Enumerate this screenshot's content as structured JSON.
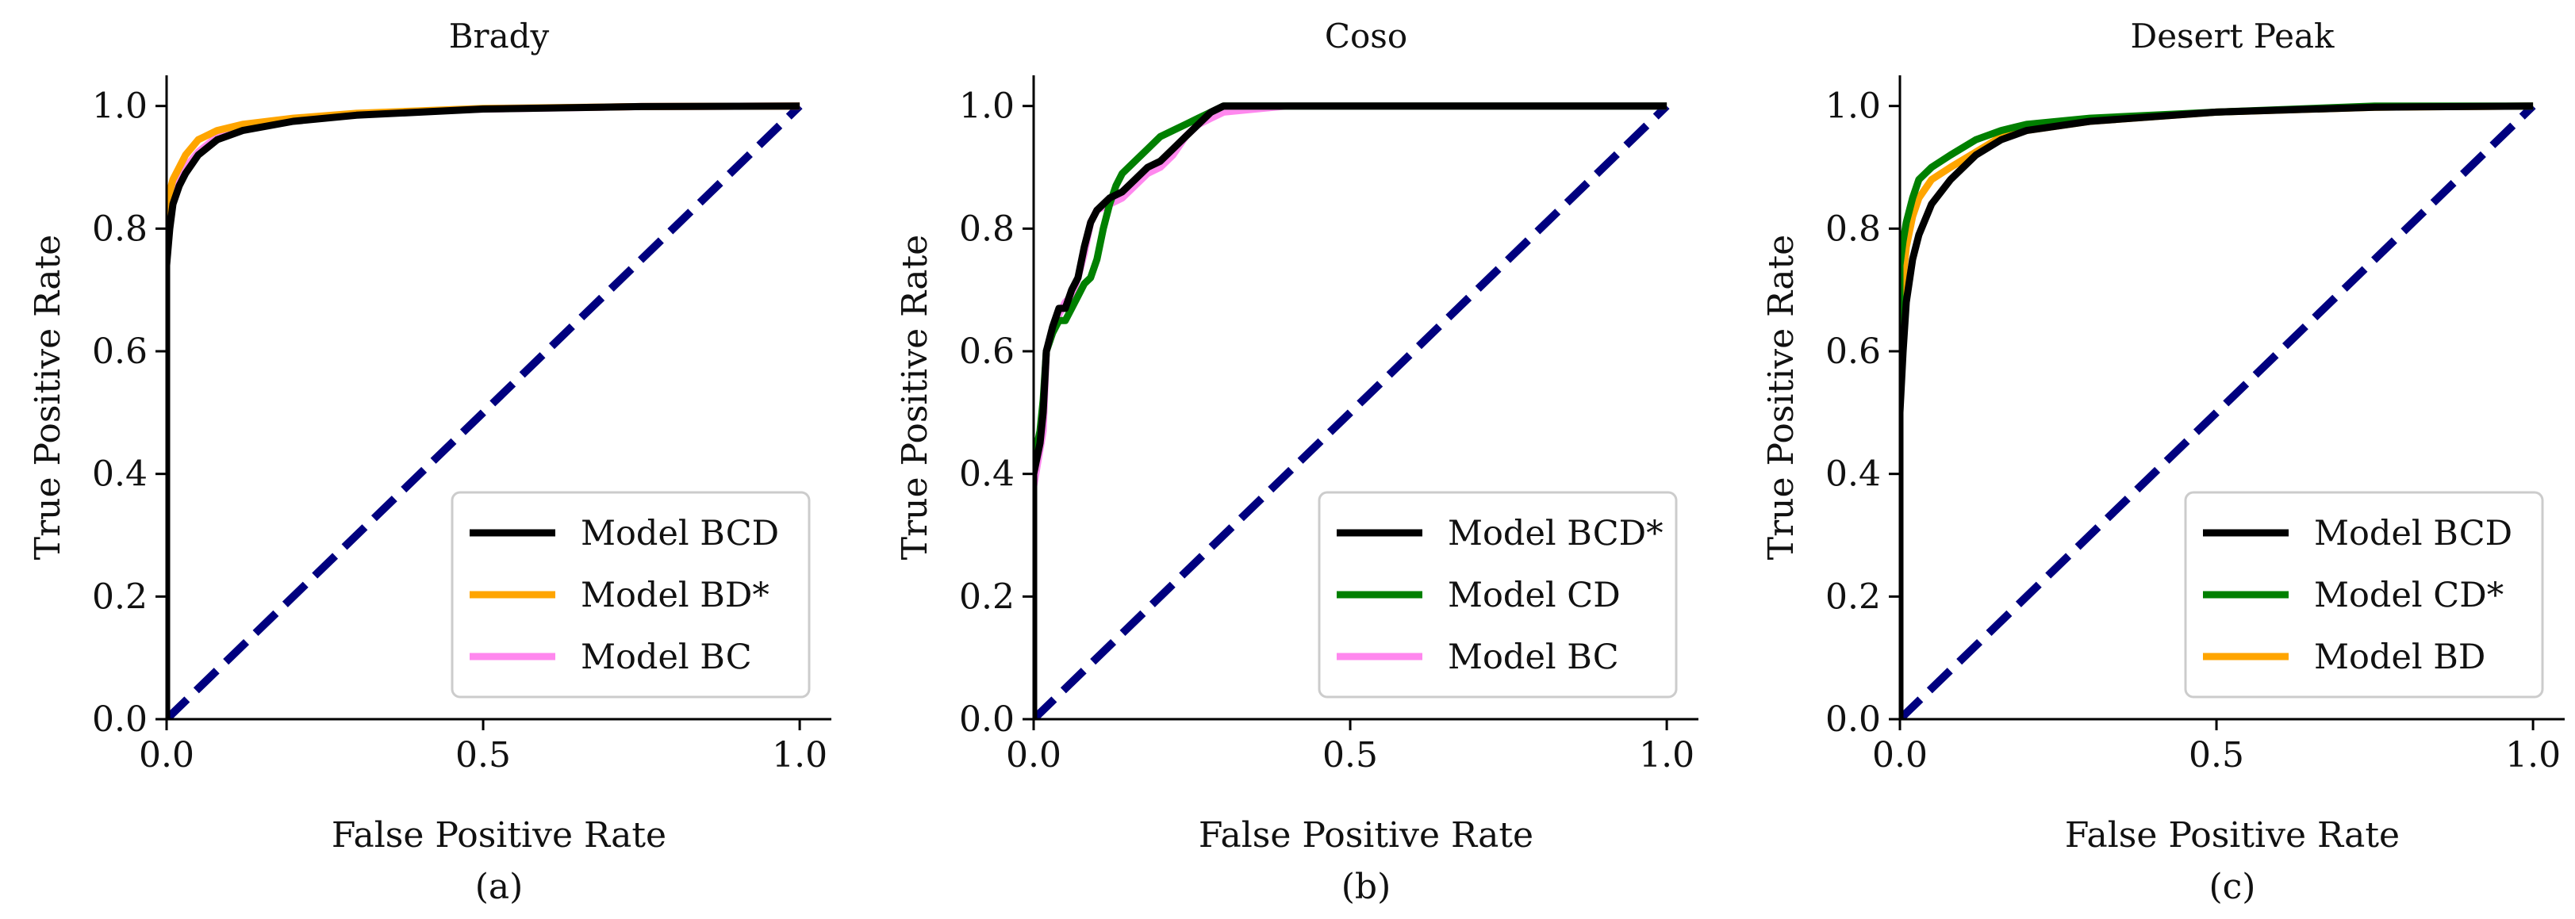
{
  "chart_data": [
    {
      "type": "line",
      "panel": "(a)",
      "title": "Brady",
      "xlabel": "False Positive Rate",
      "ylabel": "True Positive Rate",
      "xlim": [
        0,
        1.05
      ],
      "ylim": [
        0,
        1.05
      ],
      "xticks": [
        0.0,
        0.5,
        1.0
      ],
      "yticks": [
        0.0,
        0.2,
        0.4,
        0.6,
        0.8,
        1.0
      ],
      "xtick_labels": [
        "0.0",
        "0.5",
        "1.0"
      ],
      "ytick_labels": [
        "0.0",
        "0.2",
        "0.4",
        "0.6",
        "0.8",
        "1.0"
      ],
      "legend_position": "lower-right",
      "grid": false,
      "series": [
        {
          "name": "Model BCD",
          "color": "#000000",
          "x": [
            0,
            0,
            0.005,
            0.01,
            0.02,
            0.03,
            0.05,
            0.08,
            0.12,
            0.2,
            0.3,
            0.5,
            0.75,
            1.0
          ],
          "y": [
            0,
            0.74,
            0.8,
            0.84,
            0.87,
            0.89,
            0.92,
            0.945,
            0.96,
            0.975,
            0.985,
            0.995,
            0.999,
            1.0
          ]
        },
        {
          "name": "Model BD*",
          "color": "#FFA500",
          "x": [
            0,
            0,
            0.005,
            0.01,
            0.02,
            0.03,
            0.05,
            0.08,
            0.12,
            0.2,
            0.3,
            0.5,
            0.75,
            1.0
          ],
          "y": [
            0,
            0.84,
            0.86,
            0.88,
            0.9,
            0.92,
            0.945,
            0.96,
            0.97,
            0.98,
            0.988,
            0.996,
            0.999,
            1.0
          ]
        },
        {
          "name": "Model BC",
          "color": "#FF88EE",
          "x": [
            0,
            0,
            0.005,
            0.01,
            0.02,
            0.03,
            0.05,
            0.08,
            0.12,
            0.2,
            0.3,
            0.5,
            0.75,
            1.0
          ],
          "y": [
            0,
            0.8,
            0.83,
            0.86,
            0.88,
            0.9,
            0.925,
            0.95,
            0.965,
            0.978,
            0.987,
            0.995,
            0.999,
            1.0
          ]
        },
        {
          "name": "",
          "color": "#00007F",
          "style": "dashed",
          "x": [
            0,
            1
          ],
          "y": [
            0,
            1
          ]
        }
      ]
    },
    {
      "type": "line",
      "panel": "(b)",
      "title": "Coso",
      "xlabel": "False Positive Rate",
      "ylabel": "True Positive Rate",
      "xlim": [
        0,
        1.05
      ],
      "ylim": [
        0,
        1.05
      ],
      "xticks": [
        0.0,
        0.5,
        1.0
      ],
      "yticks": [
        0.0,
        0.2,
        0.4,
        0.6,
        0.8,
        1.0
      ],
      "xtick_labels": [
        "0.0",
        "0.5",
        "1.0"
      ],
      "ytick_labels": [
        "0.0",
        "0.2",
        "0.4",
        "0.6",
        "0.8",
        "1.0"
      ],
      "legend_position": "lower-right",
      "grid": false,
      "series": [
        {
          "name": "Model BCD*",
          "color": "#000000",
          "x": [
            0,
            0.0,
            0.01,
            0.015,
            0.02,
            0.03,
            0.04,
            0.05,
            0.06,
            0.07,
            0.08,
            0.09,
            0.1,
            0.12,
            0.14,
            0.16,
            0.18,
            0.2,
            0.22,
            0.24,
            0.26,
            0.28,
            0.3,
            0.4,
            0.5,
            0.7,
            1.0
          ],
          "y": [
            0,
            0.4,
            0.45,
            0.5,
            0.6,
            0.64,
            0.67,
            0.67,
            0.7,
            0.72,
            0.77,
            0.81,
            0.83,
            0.85,
            0.86,
            0.88,
            0.9,
            0.91,
            0.93,
            0.95,
            0.97,
            0.99,
            1.0,
            1.0,
            1.0,
            1.0,
            1.0
          ]
        },
        {
          "name": "Model CD",
          "color": "#008000",
          "x": [
            0,
            0.0,
            0.01,
            0.015,
            0.02,
            0.03,
            0.04,
            0.05,
            0.06,
            0.07,
            0.08,
            0.09,
            0.1,
            0.11,
            0.12,
            0.13,
            0.14,
            0.16,
            0.18,
            0.2,
            0.22,
            0.24,
            0.26,
            0.28,
            0.3,
            0.4,
            0.5,
            0.7,
            1.0
          ],
          "y": [
            0,
            0.42,
            0.47,
            0.52,
            0.6,
            0.63,
            0.65,
            0.65,
            0.67,
            0.69,
            0.71,
            0.72,
            0.75,
            0.8,
            0.84,
            0.87,
            0.89,
            0.91,
            0.93,
            0.95,
            0.96,
            0.97,
            0.98,
            0.99,
            1.0,
            1.0,
            1.0,
            1.0,
            1.0
          ]
        },
        {
          "name": "Model BC",
          "color": "#FF88EE",
          "x": [
            0,
            0.0,
            0.01,
            0.015,
            0.02,
            0.03,
            0.04,
            0.05,
            0.06,
            0.07,
            0.08,
            0.09,
            0.1,
            0.12,
            0.14,
            0.16,
            0.18,
            0.2,
            0.22,
            0.24,
            0.26,
            0.28,
            0.3,
            0.4,
            0.5,
            0.7,
            1.0
          ],
          "y": [
            0,
            0.38,
            0.44,
            0.47,
            0.6,
            0.63,
            0.66,
            0.68,
            0.69,
            0.72,
            0.76,
            0.81,
            0.83,
            0.84,
            0.85,
            0.87,
            0.89,
            0.9,
            0.92,
            0.95,
            0.97,
            0.98,
            0.99,
            1.0,
            1.0,
            1.0,
            1.0
          ]
        },
        {
          "name": "",
          "color": "#00007F",
          "style": "dashed",
          "x": [
            0,
            1
          ],
          "y": [
            0,
            1
          ]
        }
      ]
    },
    {
      "type": "line",
      "panel": "(c)",
      "title": "Desert Peak",
      "xlabel": "False Positive Rate",
      "ylabel": "True Positive Rate",
      "xlim": [
        0,
        1.05
      ],
      "ylim": [
        0,
        1.05
      ],
      "xticks": [
        0.0,
        0.5,
        1.0
      ],
      "yticks": [
        0.0,
        0.2,
        0.4,
        0.6,
        0.8,
        1.0
      ],
      "xtick_labels": [
        "0.0",
        "0.5",
        "1.0"
      ],
      "ytick_labels": [
        "0.0",
        "0.2",
        "0.4",
        "0.6",
        "0.8",
        "1.0"
      ],
      "legend_position": "lower-right",
      "grid": false,
      "series": [
        {
          "name": "Model BCD",
          "color": "#000000",
          "x": [
            0,
            0.0,
            0.005,
            0.01,
            0.02,
            0.03,
            0.05,
            0.08,
            0.12,
            0.16,
            0.2,
            0.3,
            0.5,
            0.75,
            1.0
          ],
          "y": [
            0,
            0.5,
            0.6,
            0.68,
            0.75,
            0.79,
            0.84,
            0.88,
            0.92,
            0.945,
            0.96,
            0.975,
            0.99,
            0.998,
            1.0
          ]
        },
        {
          "name": "Model CD*",
          "color": "#008000",
          "x": [
            0,
            0.0,
            0.005,
            0.01,
            0.02,
            0.03,
            0.05,
            0.08,
            0.12,
            0.16,
            0.2,
            0.3,
            0.5,
            0.75,
            1.0
          ],
          "y": [
            0,
            0.74,
            0.78,
            0.81,
            0.85,
            0.88,
            0.9,
            0.92,
            0.945,
            0.96,
            0.97,
            0.98,
            0.99,
            1.0,
            1.0
          ]
        },
        {
          "name": "Model BD",
          "color": "#FFA500",
          "x": [
            0,
            0.0,
            0.005,
            0.01,
            0.02,
            0.03,
            0.05,
            0.08,
            0.12,
            0.16,
            0.2,
            0.3,
            0.5,
            0.75,
            1.0
          ],
          "y": [
            0,
            0.66,
            0.72,
            0.77,
            0.82,
            0.85,
            0.88,
            0.9,
            0.925,
            0.95,
            0.96,
            0.975,
            0.99,
            0.998,
            1.0
          ]
        },
        {
          "name": "",
          "color": "#00007F",
          "style": "dashed",
          "x": [
            0,
            1
          ],
          "y": [
            0,
            1
          ]
        }
      ]
    }
  ]
}
